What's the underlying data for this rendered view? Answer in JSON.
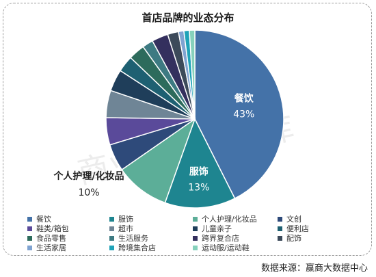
{
  "chart_data": {
    "type": "pie",
    "title": "首店品牌的业态分布",
    "slices": [
      {
        "label": "餐饮",
        "value": 43,
        "color": "#4472a8",
        "data_label": "43%"
      },
      {
        "label": "服饰",
        "value": 13,
        "color": "#1e8590",
        "data_label": "13%"
      },
      {
        "label": "个人护理/化妆品",
        "value": 10,
        "color": "#5cae98",
        "data_label": "10%"
      },
      {
        "label": "文创",
        "value": 5,
        "color": "#2e4a7a"
      },
      {
        "label": "鞋类/箱包",
        "value": 5,
        "color": "#5a4a9a"
      },
      {
        "label": "超市",
        "value": 5,
        "color": "#6f8596"
      },
      {
        "label": "儿童亲子",
        "value": 4,
        "color": "#1f3e5a"
      },
      {
        "label": "便利店",
        "value": 3,
        "color": "#1e6072"
      },
      {
        "label": "食品零售",
        "value": 3,
        "color": "#2d6b5c"
      },
      {
        "label": "生活服务",
        "value": 2,
        "color": "#3d7a82"
      },
      {
        "label": "跨界复合店",
        "value": 3,
        "color": "#34305e"
      },
      {
        "label": "配饰",
        "value": 2,
        "color": "#3c4a5a"
      },
      {
        "label": "生活家居",
        "value": 1,
        "color": "#7fa3d1"
      },
      {
        "label": "跨境集合店",
        "value": 1,
        "color": "#1fa3b8"
      },
      {
        "label": "运动服/运动鞋",
        "value": 1,
        "color": "#86d1bc"
      }
    ]
  },
  "watermark": "商业地产云智库",
  "source": "数据来源：赢商大数据中心"
}
